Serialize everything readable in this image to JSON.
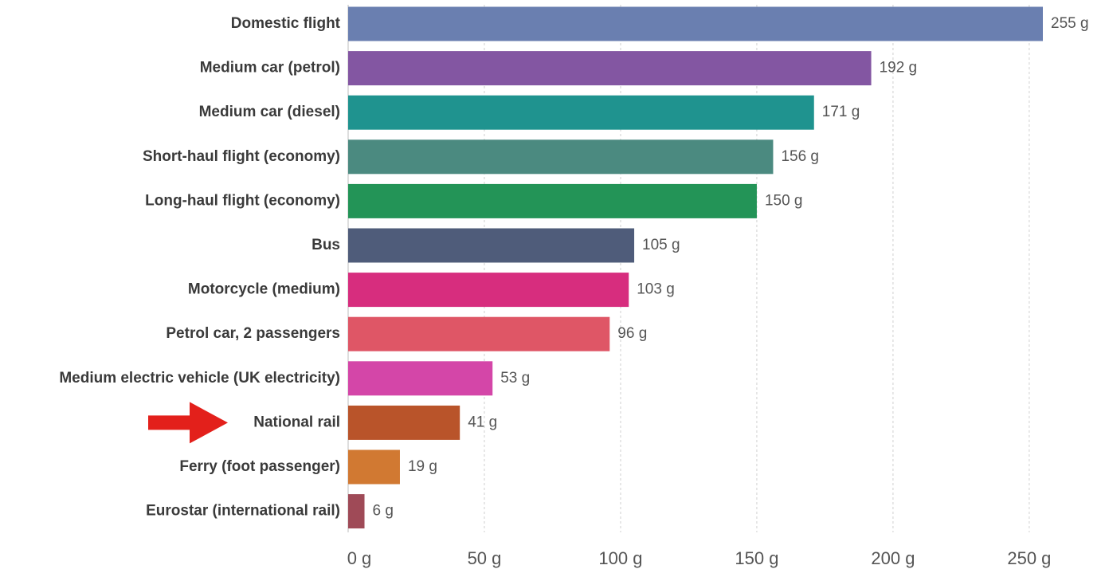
{
  "chart_data": {
    "type": "bar",
    "orientation": "horizontal",
    "categories": [
      "Domestic flight",
      "Medium car (petrol)",
      "Medium car (diesel)",
      "Short-haul flight (economy)",
      "Long-haul flight (economy)",
      "Bus",
      "Motorcycle (medium)",
      "Petrol car, 2 passengers",
      "Medium electric vehicle (UK electricity)",
      "National rail",
      "Ferry (foot passenger)",
      "Eurostar (international rail)"
    ],
    "values": [
      255,
      192,
      171,
      156,
      150,
      105,
      103,
      96,
      53,
      41,
      19,
      6
    ],
    "value_labels": [
      "255 g",
      "192 g",
      "171 g",
      "156 g",
      "150 g",
      "105 g",
      "103 g",
      "96 g",
      "53 g",
      "41 g",
      "19 g",
      "6 g"
    ],
    "colors": [
      "#6a7fb0",
      "#8356a2",
      "#1f938f",
      "#4b8a80",
      "#239457",
      "#4f5c7a",
      "#d72d7e",
      "#df5666",
      "#d446a8",
      "#b9542a",
      "#d17932",
      "#9f4a57"
    ],
    "xticks": [
      0,
      50,
      100,
      150,
      200,
      250
    ],
    "xtick_labels": [
      "0 g",
      "50 g",
      "100 g",
      "150 g",
      "200 g",
      "250 g"
    ],
    "xlim": [
      0,
      255
    ],
    "grid": "vertical dashed",
    "title": "",
    "xlabel": "",
    "ylabel": "",
    "annotation": {
      "type": "arrow",
      "target": "National rail",
      "color": "#e3201b"
    }
  }
}
